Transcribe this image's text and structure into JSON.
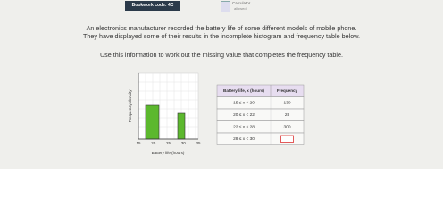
{
  "header": {
    "bookwork": "Bookwork code: 4C",
    "calculator": "Calculator",
    "calculator_note": "allowed"
  },
  "question": {
    "line1": "An electronics manufacturer recorded the battery life of some different models of mobile phone.",
    "line2": "They have displayed some of their results in the incomplete histogram and frequency table below.",
    "instruction": "Use this information to work out the missing value that completes the frequency table."
  },
  "histogram": {
    "y_label": "Frequency density",
    "x_label": "Battery life (hours)",
    "x_ticks": [
      "15",
      "20",
      "25",
      "30",
      "35"
    ]
  },
  "table": {
    "headers": [
      "Battery life, x (hours)",
      "Frequency"
    ],
    "rows": [
      [
        "15 ≤ x < 20",
        "130"
      ],
      [
        "20 ≤ x < 22",
        "28"
      ],
      [
        "22 ≤ x < 28",
        "300"
      ],
      [
        "28 ≤ x < 30"
      ]
    ]
  }
}
